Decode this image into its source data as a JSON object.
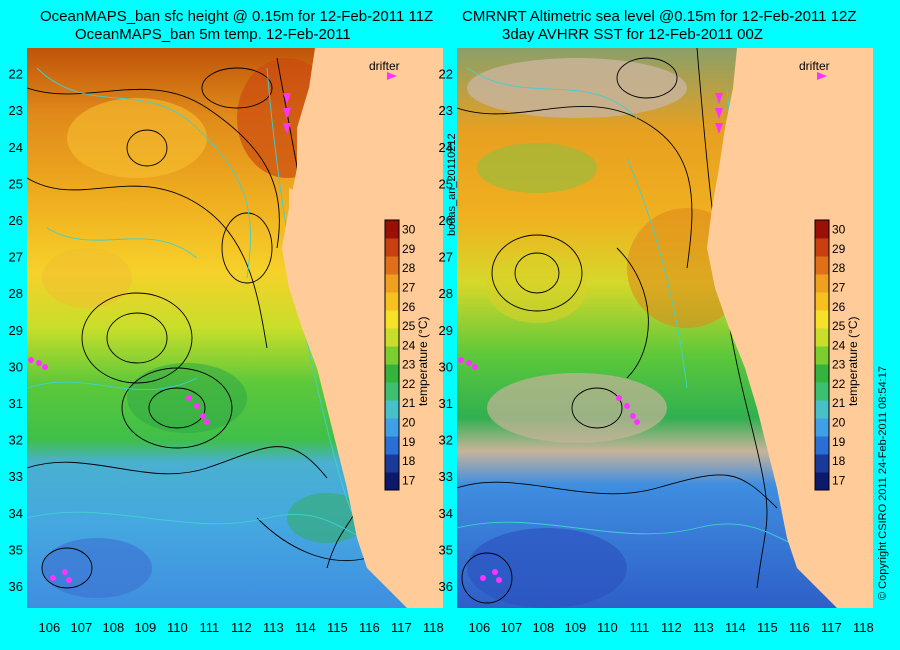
{
  "panels": [
    {
      "title_line1": "OceanMAPS_ban sfc height @ 0.15m for 12-Feb-2011 11Z",
      "title_line2": "OceanMAPS_ban 5m temp. 12-Feb-2011",
      "drifter_label": "drifter",
      "colorbar_label": "temperature (°C)"
    },
    {
      "title_line1": "CMRNRT Altimetric sea level  @0.15m  for 12-Feb-2011 12Z",
      "title_line2": "3day AVHRR SST for 12-Feb-2011 00Z",
      "drifter_label": "drifter",
      "colorbar_label": "temperature (°C)"
    }
  ],
  "side_labels": {
    "run_id": "bodas_an_20110212",
    "copyright": "© Copyright CSIRO 2011   24-Feb-2011 08:54:17"
  },
  "chart_data": [
    {
      "type": "heatmap",
      "title": "OceanMAPS_ban sfc height @ 0.15m for 12-Feb-2011 11Z / OceanMAPS_ban 5m temp. 12-Feb-2011",
      "x_ticks": [
        106,
        107,
        108,
        109,
        110,
        111,
        112,
        113,
        114,
        115,
        116,
        117,
        118
      ],
      "y_ticks": [
        22,
        23,
        24,
        25,
        26,
        27,
        28,
        29,
        30,
        31,
        32,
        33,
        34,
        35,
        36
      ],
      "xlim": [
        105.3,
        118.3
      ],
      "ylim": [
        36.6,
        21.3
      ],
      "colorbar": {
        "label": "temperature (°C)",
        "ticks": [
          17,
          18,
          19,
          20,
          21,
          22,
          23,
          24,
          25,
          26,
          27,
          28,
          29,
          30
        ],
        "range": [
          16.5,
          30.5
        ]
      },
      "colors": {
        "land": "#ffcc99",
        "warm": "#aa0000",
        "cool": "#1a3a99",
        "drifter": "#ff33ff",
        "contour": "#000000",
        "sst_contour": "#40d0d0"
      }
    },
    {
      "type": "heatmap",
      "title": "CMRNRT Altimetric sea level @0.15m for 12-Feb-2011 12Z / 3day AVHRR SST for 12-Feb-2011 00Z",
      "x_ticks": [
        106,
        107,
        108,
        109,
        110,
        111,
        112,
        113,
        114,
        115,
        116,
        117,
        118
      ],
      "y_ticks": [
        22,
        23,
        24,
        25,
        26,
        27,
        28,
        29,
        30,
        31,
        32,
        33,
        34,
        35,
        36
      ],
      "xlim": [
        105.3,
        118.3
      ],
      "ylim": [
        36.6,
        21.3
      ],
      "colorbar": {
        "label": "temperature (°C)",
        "ticks": [
          17,
          18,
          19,
          20,
          21,
          22,
          23,
          24,
          25,
          26,
          27,
          28,
          29,
          30
        ],
        "range": [
          16.5,
          30.5
        ]
      },
      "colors": {
        "land": "#ffcc99",
        "cloud": "#c8b39a",
        "drifter": "#ff33ff",
        "contour": "#000000",
        "sst_contour": "#40d0d0"
      }
    }
  ]
}
